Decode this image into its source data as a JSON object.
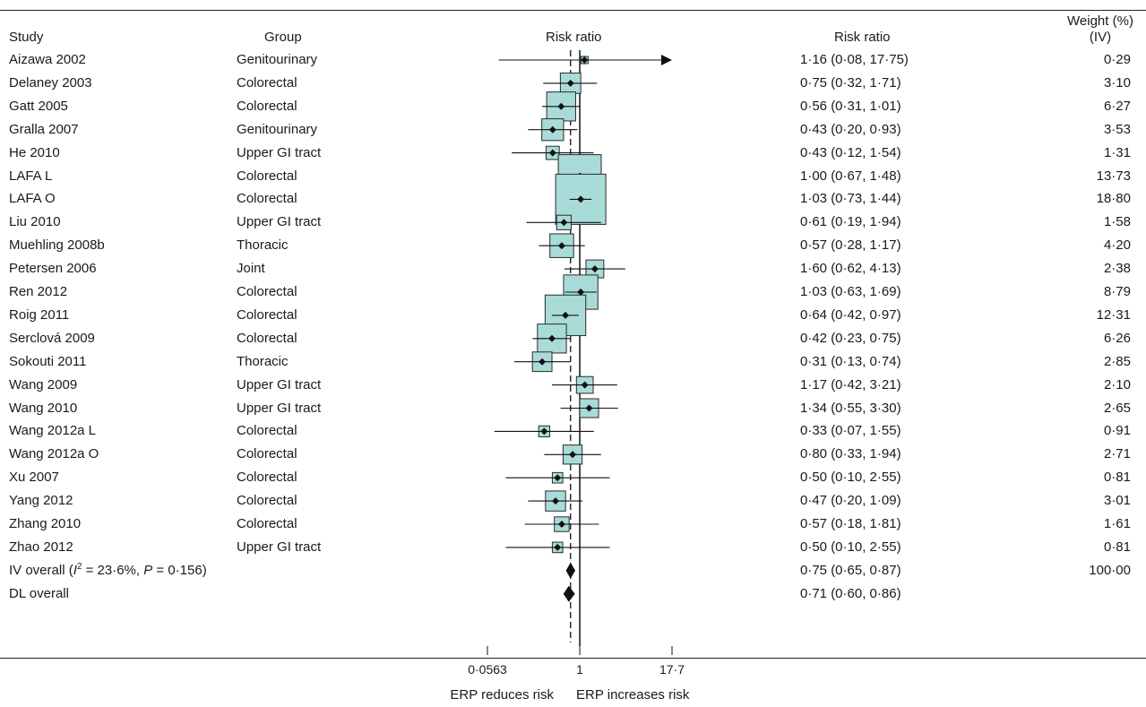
{
  "headers": {
    "study": "Study",
    "group": "Group",
    "plot": "Risk ratio",
    "ci": "Risk ratio",
    "weight_line1": "Weight (%)",
    "weight_line2": "(IV)"
  },
  "chart_data": {
    "type": "forest",
    "scale": "log",
    "xlim": [
      0.0563,
      17.7
    ],
    "xticks": [
      "0·0563",
      "1",
      "17·7"
    ],
    "xtick_values": [
      0.0563,
      1,
      17.7
    ],
    "null_line": 1,
    "pooled_line": 0.75,
    "colors": {
      "box_fill": "#a9dbd9",
      "box_stroke": "#2a2a2a",
      "point": "#111111",
      "line": "#111111"
    },
    "studies": [
      {
        "study": "Aizawa 2002",
        "group": "Genitourinary",
        "rr": 1.16,
        "lo": 0.08,
        "hi": 17.75,
        "ci": "1·16 (0·08, 17·75)",
        "weight": 0.29,
        "weight_label": "0·29",
        "arrow_right": true
      },
      {
        "study": "Delaney 2003",
        "group": "Colorectal",
        "rr": 0.75,
        "lo": 0.32,
        "hi": 1.71,
        "ci": "0·75 (0·32, 1·71)",
        "weight": 3.1,
        "weight_label": "3·10"
      },
      {
        "study": "Gatt 2005",
        "group": "Colorectal",
        "rr": 0.56,
        "lo": 0.31,
        "hi": 1.01,
        "ci": "0·56 (0·31, 1·01)",
        "weight": 6.27,
        "weight_label": "6·27"
      },
      {
        "study": "Gralla 2007",
        "group": "Genitourinary",
        "rr": 0.43,
        "lo": 0.2,
        "hi": 0.93,
        "ci": "0·43 (0·20, 0·93)",
        "weight": 3.53,
        "weight_label": "3·53"
      },
      {
        "study": "He 2010",
        "group": "Upper GI tract",
        "rr": 0.43,
        "lo": 0.12,
        "hi": 1.54,
        "ci": "0·43 (0·12, 1·54)",
        "weight": 1.31,
        "weight_label": "1·31"
      },
      {
        "study": "LAFA L",
        "group": "Colorectal",
        "rr": 1.0,
        "lo": 0.67,
        "hi": 1.48,
        "ci": "1·00 (0·67, 1·48)",
        "weight": 13.73,
        "weight_label": "13·73"
      },
      {
        "study": "LAFA O",
        "group": "Colorectal",
        "rr": 1.03,
        "lo": 0.73,
        "hi": 1.44,
        "ci": "1·03 (0·73, 1·44)",
        "weight": 18.8,
        "weight_label": "18·80"
      },
      {
        "study": "Liu 2010",
        "group": "Upper GI tract",
        "rr": 0.61,
        "lo": 0.19,
        "hi": 1.94,
        "ci": "0·61 (0·19, 1·94)",
        "weight": 1.58,
        "weight_label": "1·58"
      },
      {
        "study": "Muehling 2008b",
        "group": "Thoracic",
        "rr": 0.57,
        "lo": 0.28,
        "hi": 1.17,
        "ci": "0·57 (0·28, 1·17)",
        "weight": 4.2,
        "weight_label": "4·20"
      },
      {
        "study": "Petersen 2006",
        "group": "Joint",
        "rr": 1.6,
        "lo": 0.62,
        "hi": 4.13,
        "ci": "1·60 (0·62, 4·13)",
        "weight": 2.38,
        "weight_label": "2·38"
      },
      {
        "study": "Ren 2012",
        "group": "Colorectal",
        "rr": 1.03,
        "lo": 0.63,
        "hi": 1.69,
        "ci": "1·03 (0·63, 1·69)",
        "weight": 8.79,
        "weight_label": "8·79"
      },
      {
        "study": "Roig 2011",
        "group": "Colorectal",
        "rr": 0.64,
        "lo": 0.42,
        "hi": 0.97,
        "ci": "0·64 (0·42, 0·97)",
        "weight": 12.31,
        "weight_label": "12·31"
      },
      {
        "study": "Serclová 2009",
        "group": "Colorectal",
        "rr": 0.42,
        "lo": 0.23,
        "hi": 0.75,
        "ci": "0·42 (0·23, 0·75)",
        "weight": 6.26,
        "weight_label": "6·26"
      },
      {
        "study": "Sokouti 2011",
        "group": "Thoracic",
        "rr": 0.31,
        "lo": 0.13,
        "hi": 0.74,
        "ci": "0·31 (0·13, 0·74)",
        "weight": 2.85,
        "weight_label": "2·85"
      },
      {
        "study": "Wang 2009",
        "group": "Upper GI tract",
        "rr": 1.17,
        "lo": 0.42,
        "hi": 3.21,
        "ci": "1·17 (0·42, 3·21)",
        "weight": 2.1,
        "weight_label": "2·10"
      },
      {
        "study": "Wang 2010",
        "group": "Upper GI tract",
        "rr": 1.34,
        "lo": 0.55,
        "hi": 3.3,
        "ci": "1·34 (0·55, 3·30)",
        "weight": 2.65,
        "weight_label": "2·65"
      },
      {
        "study": "Wang 2012a L",
        "group": "Colorectal",
        "rr": 0.33,
        "lo": 0.07,
        "hi": 1.55,
        "ci": "0·33 (0·07, 1·55)",
        "weight": 0.91,
        "weight_label": "0·91"
      },
      {
        "study": "Wang 2012a O",
        "group": "Colorectal",
        "rr": 0.8,
        "lo": 0.33,
        "hi": 1.94,
        "ci": "0·80 (0·33, 1·94)",
        "weight": 2.71,
        "weight_label": "2·71"
      },
      {
        "study": "Xu 2007",
        "group": "Colorectal",
        "rr": 0.5,
        "lo": 0.1,
        "hi": 2.55,
        "ci": "0·50 (0·10, 2·55)",
        "weight": 0.81,
        "weight_label": "0·81"
      },
      {
        "study": "Yang 2012",
        "group": "Colorectal",
        "rr": 0.47,
        "lo": 0.2,
        "hi": 1.09,
        "ci": "0·47 (0·20, 1·09)",
        "weight": 3.01,
        "weight_label": "3·01"
      },
      {
        "study": "Zhang 2010",
        "group": "Colorectal",
        "rr": 0.57,
        "lo": 0.18,
        "hi": 1.81,
        "ci": "0·57 (0·18, 1·81)",
        "weight": 1.61,
        "weight_label": "1·61"
      },
      {
        "study": "Zhao 2012",
        "group": "Upper GI tract",
        "rr": 0.5,
        "lo": 0.1,
        "hi": 2.55,
        "ci": "0·50 (0·10, 2·55)",
        "weight": 0.81,
        "weight_label": "0·81"
      }
    ],
    "overall": [
      {
        "label_prefix": "IV overall (",
        "i2_symbol": "I",
        "i2_sup": "2",
        "label_mid": " = 23·6%, ",
        "p_symbol": "P",
        "label_suffix": " = 0·156)",
        "rr": 0.75,
        "lo": 0.65,
        "hi": 0.87,
        "ci": "0·75 (0·65, 0·87)",
        "weight_label": "100·00"
      },
      {
        "label": "DL overall",
        "rr": 0.71,
        "lo": 0.6,
        "hi": 0.86,
        "ci": "0·71 (0·60, 0·86)",
        "weight_label": ""
      }
    ],
    "footer": {
      "left": "ERP reduces risk",
      "right": "ERP increases risk"
    }
  }
}
